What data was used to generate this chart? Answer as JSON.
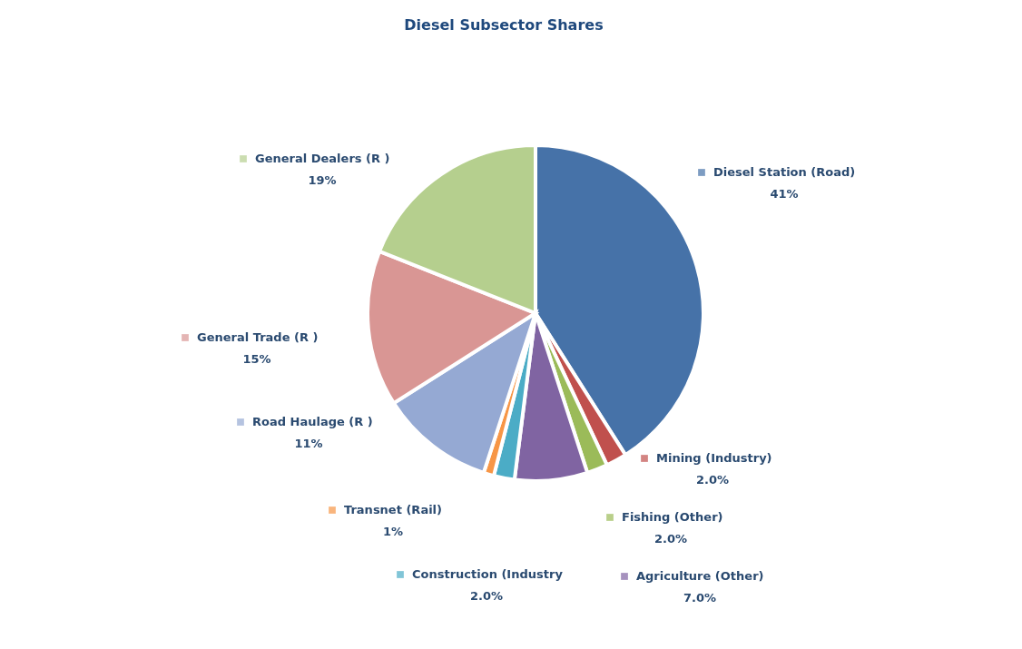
{
  "chart_data": {
    "type": "pie",
    "title": "Diesel Subsector Shares",
    "categories": [
      "Diesel Station (Road)",
      "Mining (Industry)",
      "Fishing (Other)",
      "Agriculture (Other)",
      "Construction (Industry",
      "Transnet (Rail)",
      "Road Haulage (R )",
      "General Trade (R )",
      "General Dealers (R )"
    ],
    "values": [
      41,
      2.0,
      2.0,
      7.0,
      2.0,
      1,
      11,
      15,
      19
    ],
    "value_labels": [
      "41%",
      "2.0%",
      "2.0%",
      "7.0%",
      "2.0%",
      "1%",
      "11%",
      "15%",
      "19%"
    ],
    "colors": [
      "#4672a8",
      "#c0504d",
      "#9bbb59",
      "#8064a2",
      "#4bacc6",
      "#f79646",
      "#95a9d3",
      "#d99694",
      "#b5cf8e"
    ],
    "legend": "bottom left"
  }
}
